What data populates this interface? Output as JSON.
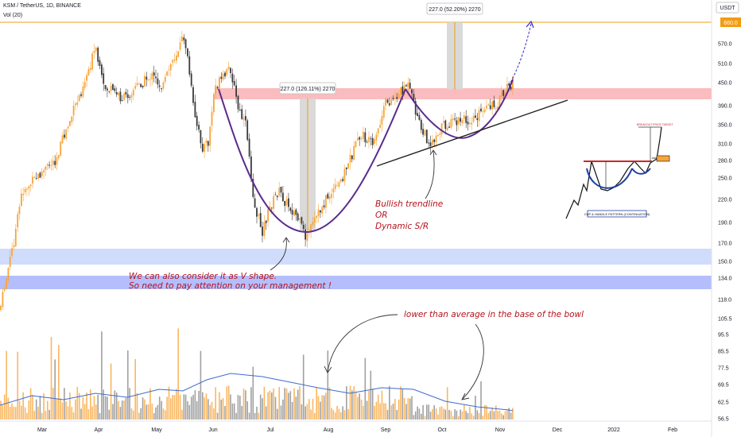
{
  "header": {
    "symbol_line": "KSM / TetherUS, 1D, BINANCE",
    "indicator_line": "Vol (20)"
  },
  "currency_badge": "USDT",
  "price_tag": "660.0",
  "colors": {
    "up": "#f7a53a",
    "down": "#3a3a3a",
    "resistance_zone": "#f8a6a8",
    "support_zone_1": "#c3d3fb",
    "support_zone_2": "#a3aefb",
    "cup_curve": "#5b2c8c",
    "trendline": "#222222",
    "target_line": "#f39c12",
    "volume_ma": "#3d6bd1",
    "annotation": "#b5121b"
  },
  "measures": [
    {
      "label": "227.0 (126.11%) 2270"
    },
    {
      "label": "227.0 (52.20%) 2270"
    }
  ],
  "annotations": {
    "trendline_1": "Bullish trendline",
    "trendline_2": "OR",
    "trendline_3": "Dynamic S/R",
    "vshape_1": "We can also consider it as V shape.",
    "vshape_2": "So need to pay attention on your management !",
    "volume_note": "lower than average in the base of the bowl"
  },
  "inset": {
    "title": "CUP & HANDLE PATTERN (CONTINUATION)",
    "target_text": "BREAKOUT PRICE TARGET"
  },
  "chart_data": {
    "type": "candlestick",
    "x_ticks": [
      "Mar",
      "Apr",
      "May",
      "Jun",
      "Jul",
      "Aug",
      "Sep",
      "Oct",
      "Nov",
      "Dec",
      "2022",
      "Feb"
    ],
    "y_ticks": [
      "660.0",
      "570.0",
      "510.0",
      "450.0",
      "390.0",
      "350.0",
      "310.0",
      "280.0",
      "250.0",
      "220.0",
      "190.0",
      "170.0",
      "150.0",
      "134.0",
      "118.0",
      "105.5",
      "95.5",
      "85.5",
      "77.5",
      "69.5",
      "62.5",
      "56.5"
    ],
    "y_scale": "log",
    "price_series_approx": {
      "description": "approximate daily closes, Feb–Nov 2021",
      "months": [
        "Feb",
        "Mar",
        "Apr",
        "May",
        "Jun",
        "Jul",
        "Aug",
        "Sep",
        "Oct",
        "Nov"
      ],
      "close": [
        150,
        320,
        480,
        520,
        400,
        185,
        260,
        420,
        330,
        460
      ]
    },
    "zones": {
      "resistance": [
        390,
        430
      ],
      "support_1": [
        152,
        170
      ],
      "support_2": [
        128,
        137
      ]
    },
    "target": 660
  }
}
